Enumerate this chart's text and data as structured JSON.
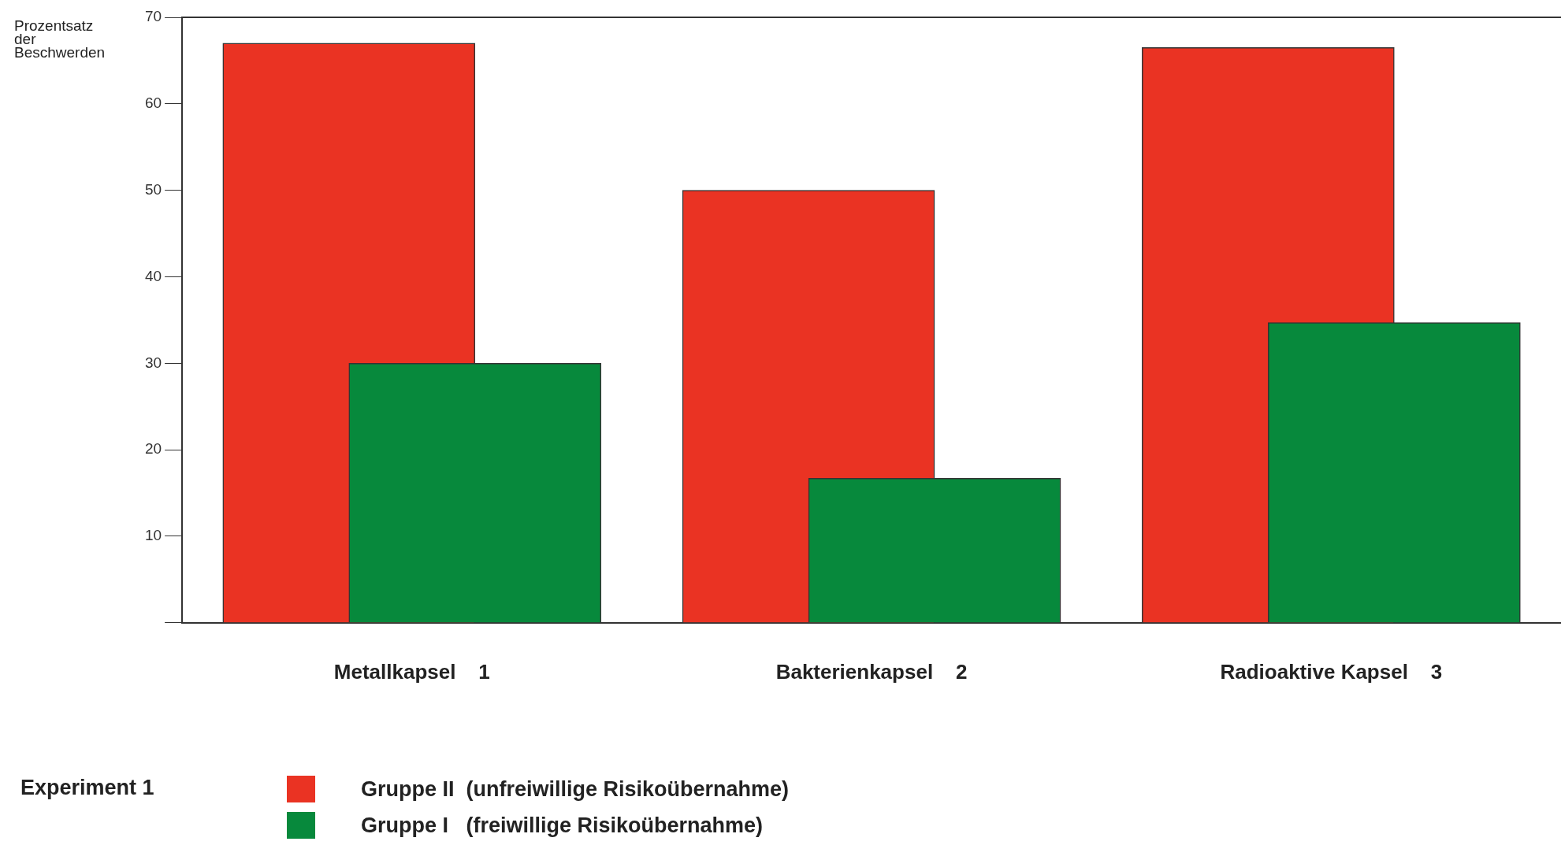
{
  "chart_data": {
    "type": "bar",
    "ylabel": "Prozentsatz der Beschwerden",
    "legend_title": "Experiment 1",
    "legend": "bottom left",
    "categories": [
      "Metallkapsel    1",
      "Bakterienkapsel    2",
      "Radioaktive Kapsel    3"
    ],
    "series": [
      {
        "name": "Gruppe II  (unfreiwillige Risikoübernahme)",
        "color": "#ea3323",
        "values": [
          67,
          50,
          66.5
        ]
      },
      {
        "name": "Gruppe I   (freiwillige Risikoübernahme)",
        "color": "#07893c",
        "values": [
          30,
          16.7,
          34.7
        ]
      }
    ],
    "ylim": [
      0,
      70
    ],
    "yticks": [
      {
        "value": 0,
        "label": null
      },
      10,
      20,
      30,
      40,
      50,
      60,
      70
    ],
    "grid": false
  }
}
